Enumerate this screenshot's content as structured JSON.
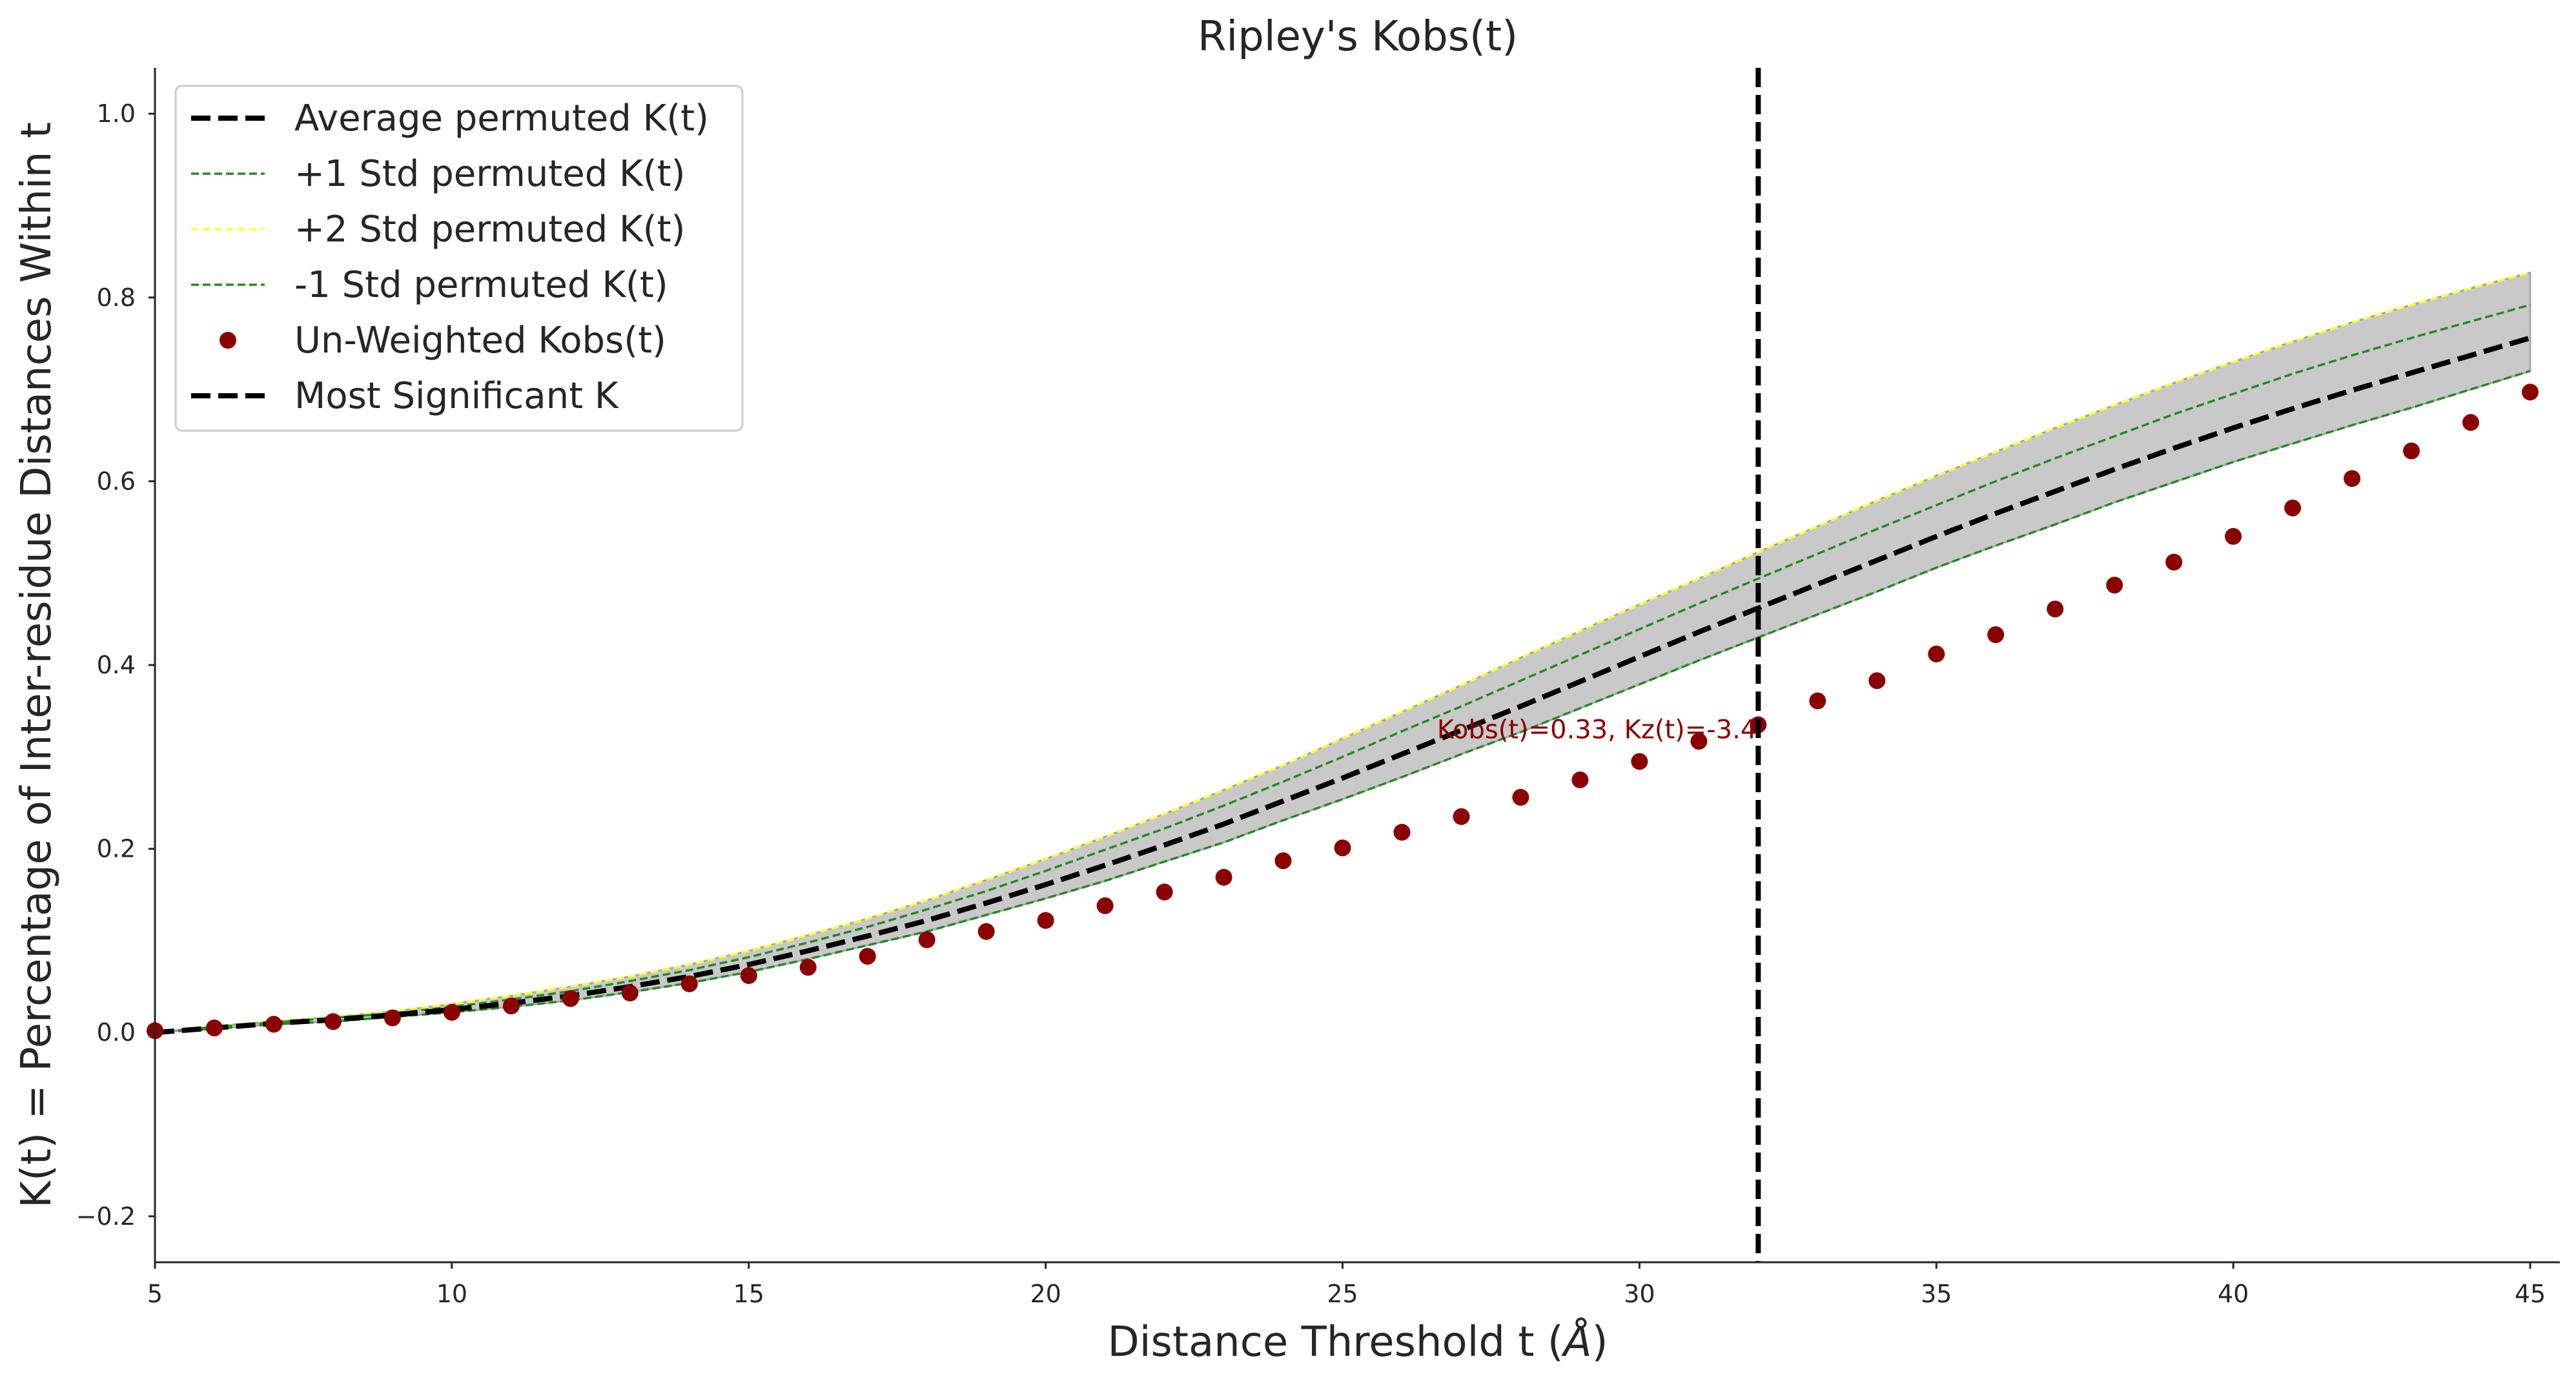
{
  "chart_data": {
    "type": "line",
    "title": "Ripley's Kobs(t)",
    "xlabel": "Distance Threshold t (",
    "xlabel_symbol": "Å",
    "xlabel_close": ")",
    "ylabel": "K(t) = Percentage of Inter-residue Distances Within t",
    "xlim": [
      5,
      45.5
    ],
    "ylim": [
      -0.25,
      1.05
    ],
    "x_ticks": [
      5,
      10,
      15,
      20,
      25,
      30,
      35,
      40,
      45
    ],
    "y_ticks": [
      -0.2,
      0.0,
      0.2,
      0.4,
      0.6,
      0.8,
      1.0
    ],
    "y_tick_labels": [
      "−0.2",
      "0.0",
      "0.2",
      "0.4",
      "0.6",
      "0.8",
      "1.0"
    ],
    "grid": false,
    "legend_position": "top-left",
    "x": [
      5,
      6,
      7,
      8,
      9,
      10,
      11,
      12,
      13,
      14,
      15,
      16,
      17,
      18,
      19,
      20,
      21,
      22,
      23,
      24,
      25,
      26,
      27,
      28,
      29,
      30,
      31,
      32,
      33,
      34,
      35,
      36,
      37,
      38,
      39,
      40,
      41,
      42,
      43,
      44,
      45
    ],
    "series": [
      {
        "name": "Average permuted K(t)",
        "style": "dashed",
        "color": "#000000",
        "values": [
          0.0,
          0.005,
          0.01,
          0.014,
          0.019,
          0.025,
          0.032,
          0.04,
          0.05,
          0.061,
          0.074,
          0.089,
          0.105,
          0.122,
          0.141,
          0.161,
          0.182,
          0.204,
          0.227,
          0.252,
          0.277,
          0.303,
          0.329,
          0.355,
          0.382,
          0.409,
          0.436,
          0.462,
          0.488,
          0.514,
          0.54,
          0.565,
          0.589,
          0.613,
          0.636,
          0.658,
          0.679,
          0.699,
          0.718,
          0.737,
          0.756
        ]
      },
      {
        "name": "+1 Std permuted K(t)",
        "style": "dashed-thin",
        "color": "#228B22",
        "values": [
          0.0,
          0.006,
          0.011,
          0.016,
          0.021,
          0.028,
          0.036,
          0.045,
          0.056,
          0.068,
          0.082,
          0.098,
          0.115,
          0.134,
          0.154,
          0.176,
          0.199,
          0.222,
          0.247,
          0.273,
          0.3,
          0.328,
          0.355,
          0.383,
          0.411,
          0.439,
          0.467,
          0.494,
          0.521,
          0.548,
          0.574,
          0.6,
          0.625,
          0.649,
          0.673,
          0.695,
          0.717,
          0.737,
          0.756,
          0.774,
          0.792
        ]
      },
      {
        "name": "+2 Std permuted K(t)",
        "style": "dashed-thin",
        "color": "#FFFF33",
        "values": [
          0.0,
          0.007,
          0.012,
          0.017,
          0.023,
          0.031,
          0.04,
          0.05,
          0.061,
          0.074,
          0.089,
          0.106,
          0.124,
          0.144,
          0.166,
          0.189,
          0.213,
          0.238,
          0.264,
          0.291,
          0.32,
          0.349,
          0.378,
          0.408,
          0.437,
          0.466,
          0.494,
          0.523,
          0.551,
          0.579,
          0.606,
          0.632,
          0.658,
          0.683,
          0.707,
          0.73,
          0.752,
          0.773,
          0.792,
          0.81,
          0.827
        ]
      },
      {
        "name": "-1 Std permuted K(t)",
        "style": "dashed-thin",
        "color": "#228B22",
        "values": [
          0.0,
          0.004,
          0.009,
          0.012,
          0.017,
          0.022,
          0.028,
          0.035,
          0.044,
          0.054,
          0.066,
          0.08,
          0.095,
          0.11,
          0.128,
          0.146,
          0.165,
          0.186,
          0.207,
          0.231,
          0.254,
          0.278,
          0.303,
          0.327,
          0.353,
          0.379,
          0.405,
          0.43,
          0.455,
          0.48,
          0.506,
          0.53,
          0.553,
          0.577,
          0.599,
          0.621,
          0.641,
          0.661,
          0.68,
          0.7,
          0.72
        ]
      },
      {
        "name": "Un-Weighted Kobs(t)",
        "style": "scatter",
        "color": "#8B0000",
        "values": [
          0.002,
          0.005,
          0.009,
          0.012,
          0.016,
          0.022,
          0.029,
          0.037,
          0.043,
          0.053,
          0.062,
          0.071,
          0.083,
          0.101,
          0.11,
          0.122,
          0.138,
          0.153,
          0.169,
          0.187,
          0.201,
          0.218,
          0.235,
          0.256,
          0.275,
          0.295,
          0.317,
          0.335,
          0.361,
          0.383,
          0.412,
          0.433,
          0.461,
          0.487,
          0.512,
          0.54,
          0.571,
          0.603,
          0.633,
          0.664,
          0.697
        ]
      },
      {
        "name": "Most Significant K",
        "style": "vline",
        "color": "#000000",
        "x_value": 32
      }
    ],
    "band": {
      "color": "#C9C9C9",
      "edge": "#A6A6A6",
      "lower": "-1 Std permuted K(t)",
      "upper": "+2 Std permuted K(t)"
    },
    "annotation": {
      "text": "Kobs(t)=0.33, Kz(t)=-3.4",
      "x": 32,
      "y": 0.33,
      "color": "#8B0000"
    }
  }
}
